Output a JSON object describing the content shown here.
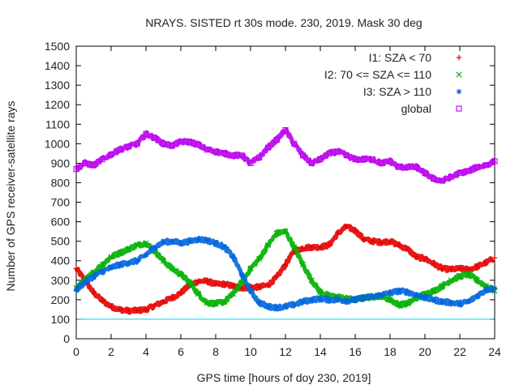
{
  "chart_data": {
    "type": "scatter",
    "title": "NRAYS. SISTED rt 30s mode. 230, 2019. Mask 30 deg",
    "xlabel": "GPS time [hours of doy 230, 2019]",
    "ylabel": "Number of GPS receiver-satellite rays",
    "xlim": [
      0,
      24
    ],
    "ylim": [
      0,
      1500
    ],
    "xticks": [
      "0",
      "2",
      "4",
      "6",
      "8",
      "10",
      "12",
      "14",
      "16",
      "18",
      "20",
      "22",
      "24"
    ],
    "yticks": [
      "0",
      "100",
      "200",
      "300",
      "400",
      "500",
      "600",
      "700",
      "800",
      "900",
      "1000",
      "1100",
      "1200",
      "1300",
      "1400",
      "1500"
    ],
    "threshold": {
      "y": 100,
      "color": "#00d0e0"
    },
    "legend_position": "top-right",
    "series": [
      {
        "name": "I1: SZA < 70",
        "marker": "plus",
        "color": "#e60000",
        "x": [
          0,
          0.5,
          1,
          1.5,
          2,
          2.5,
          3,
          3.5,
          4,
          4.5,
          5,
          5.5,
          6,
          6.5,
          7,
          7.5,
          8,
          8.5,
          9,
          9.5,
          10,
          10.5,
          11,
          11.5,
          12,
          12.5,
          13,
          13.5,
          14,
          14.5,
          15,
          15.5,
          16,
          16.5,
          17,
          17.5,
          18,
          18.5,
          19,
          19.5,
          20,
          20.5,
          21,
          21.5,
          22,
          22.5,
          23,
          23.5,
          24
        ],
        "values": [
          360,
          300,
          235,
          195,
          165,
          150,
          143,
          145,
          150,
          170,
          190,
          210,
          235,
          275,
          295,
          295,
          280,
          280,
          270,
          260,
          265,
          265,
          275,
          315,
          380,
          450,
          465,
          470,
          470,
          480,
          540,
          575,
          555,
          510,
          500,
          495,
          500,
          480,
          460,
          420,
          410,
          385,
          360,
          355,
          360,
          355,
          370,
          390,
          415
        ]
      },
      {
        "name": "I2: 70 <= SZA <= 110",
        "marker": "x",
        "color": "#00b000",
        "x": [
          0,
          0.5,
          1,
          1.5,
          2,
          2.5,
          3,
          3.5,
          4,
          4.5,
          5,
          5.5,
          6,
          6.5,
          7,
          7.5,
          8,
          8.5,
          9,
          9.5,
          10,
          10.5,
          11,
          11.5,
          12,
          12.5,
          13,
          13.5,
          14,
          14.5,
          15,
          15.5,
          16,
          16.5,
          17,
          17.5,
          18,
          18.5,
          19,
          19.5,
          20,
          20.5,
          21,
          21.5,
          22,
          22.5,
          23,
          23.5,
          24
        ],
        "values": [
          260,
          300,
          340,
          380,
          420,
          440,
          460,
          480,
          490,
          450,
          400,
          360,
          330,
          290,
          230,
          185,
          180,
          190,
          230,
          290,
          360,
          410,
          480,
          540,
          550,
          470,
          380,
          300,
          240,
          220,
          215,
          205,
          200,
          210,
          215,
          220,
          200,
          175,
          180,
          210,
          230,
          245,
          270,
          300,
          320,
          330,
          300,
          270,
          245
        ]
      },
      {
        "name": "I3: SZA > 110",
        "marker": "star",
        "color": "#0066dd",
        "x": [
          0,
          0.5,
          1,
          1.5,
          2,
          2.5,
          3,
          3.5,
          4,
          4.5,
          5,
          5.5,
          6,
          6.5,
          7,
          7.5,
          8,
          8.5,
          9,
          9.5,
          10,
          10.5,
          11,
          11.5,
          12,
          12.5,
          13,
          13.5,
          14,
          14.5,
          15,
          15.5,
          16,
          16.5,
          17,
          17.5,
          18,
          18.5,
          19,
          19.5,
          20,
          20.5,
          21,
          21.5,
          22,
          22.5,
          23,
          23.5,
          24
        ],
        "values": [
          250,
          290,
          320,
          345,
          365,
          380,
          390,
          400,
          430,
          470,
          495,
          500,
          490,
          500,
          510,
          505,
          490,
          470,
          420,
          330,
          245,
          185,
          165,
          160,
          165,
          175,
          190,
          200,
          205,
          200,
          200,
          195,
          200,
          210,
          215,
          225,
          235,
          245,
          240,
          225,
          210,
          200,
          190,
          185,
          180,
          190,
          220,
          250,
          260
        ]
      },
      {
        "name": "global",
        "marker": "square",
        "color": "#bb00ee",
        "x": [
          0,
          0.5,
          1,
          1.5,
          2,
          2.5,
          3,
          3.5,
          4,
          4.5,
          5,
          5.5,
          6,
          6.5,
          7,
          7.5,
          8,
          8.5,
          9,
          9.5,
          10,
          10.5,
          11,
          11.5,
          12,
          12.5,
          13,
          13.5,
          14,
          14.5,
          15,
          15.5,
          16,
          16.5,
          17,
          17.5,
          18,
          18.5,
          19,
          19.5,
          20,
          20.5,
          21,
          21.5,
          22,
          22.5,
          23,
          23.5,
          24
        ],
        "values": [
          870,
          900,
          890,
          920,
          945,
          970,
          985,
          1000,
          1050,
          1030,
          1000,
          990,
          1010,
          1010,
          995,
          970,
          960,
          950,
          940,
          940,
          900,
          930,
          980,
          1020,
          1070,
          1000,
          940,
          900,
          920,
          950,
          960,
          940,
          920,
          920,
          920,
          900,
          910,
          880,
          880,
          880,
          850,
          820,
          810,
          830,
          850,
          860,
          880,
          890,
          910
        ]
      }
    ]
  }
}
